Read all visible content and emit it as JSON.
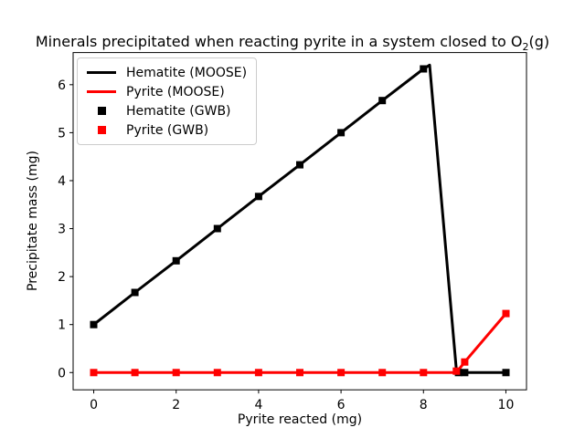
{
  "figure": {
    "title_prefix": "Minerals precipitated when reacting pyrite in a system closed to O",
    "title_sub": "2",
    "title_suffix": "(g)"
  },
  "chart_data": {
    "type": "line",
    "title": "Minerals precipitated when reacting pyrite in a system closed to O2(g)",
    "xlabel": "Pyrite reacted (mg)",
    "ylabel": "Precipitate mass (mg)",
    "xlim": [
      -0.5,
      10.5
    ],
    "ylim": [
      -0.36,
      6.67
    ],
    "xticks": [
      0,
      2,
      4,
      6,
      8,
      10
    ],
    "yticks": [
      0,
      1,
      2,
      3,
      4,
      5,
      6
    ],
    "grid": false,
    "legend_position": "upper-left",
    "colors": {
      "hematite": "#000000",
      "pyrite": "#ff0000"
    },
    "series": [
      {
        "name": "Hematite (MOOSE)",
        "type": "line",
        "color": "#000000",
        "points": [
          [
            0,
            1.0
          ],
          [
            1,
            1.67
          ],
          [
            2,
            2.33
          ],
          [
            3,
            3.0
          ],
          [
            4,
            3.67
          ],
          [
            5,
            4.33
          ],
          [
            6,
            5.0
          ],
          [
            7,
            5.67
          ],
          [
            8,
            6.33
          ],
          [
            8.15,
            6.41
          ],
          [
            8.8,
            0.05
          ],
          [
            8.9,
            0.0
          ],
          [
            10,
            0.0
          ]
        ]
      },
      {
        "name": "Pyrite (MOOSE)",
        "type": "line",
        "color": "#ff0000",
        "points": [
          [
            0,
            0.0
          ],
          [
            8.8,
            0.0
          ],
          [
            9,
            0.22
          ],
          [
            10,
            1.23
          ]
        ]
      },
      {
        "name": "Hematite (GWB)",
        "type": "scatter",
        "color": "#000000",
        "points": [
          [
            0,
            1.0
          ],
          [
            1,
            1.67
          ],
          [
            2,
            2.33
          ],
          [
            3,
            3.0
          ],
          [
            4,
            3.67
          ],
          [
            5,
            4.33
          ],
          [
            6,
            5.0
          ],
          [
            7,
            5.67
          ],
          [
            8,
            6.33
          ],
          [
            8.85,
            0.0
          ],
          [
            9,
            0.0
          ],
          [
            10,
            0.0
          ]
        ]
      },
      {
        "name": "Pyrite (GWB)",
        "type": "scatter",
        "color": "#ff0000",
        "points": [
          [
            0,
            0.0
          ],
          [
            1,
            0.0
          ],
          [
            2,
            0.0
          ],
          [
            3,
            0.0
          ],
          [
            4,
            0.0
          ],
          [
            5,
            0.0
          ],
          [
            6,
            0.0
          ],
          [
            7,
            0.0
          ],
          [
            8,
            0.0
          ],
          [
            8.8,
            0.03
          ],
          [
            9,
            0.22
          ],
          [
            10,
            1.23
          ]
        ]
      }
    ]
  }
}
